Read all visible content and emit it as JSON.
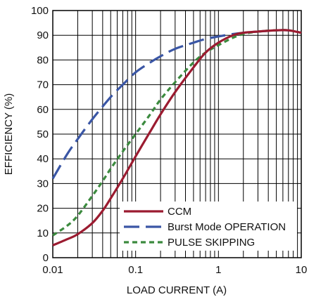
{
  "chart_data": {
    "type": "line",
    "xscale": "log",
    "xlim": [
      0.01,
      10
    ],
    "ylim": [
      0,
      100
    ],
    "xlabel": "LOAD CURRENT (A)",
    "ylabel": "EFFICIENCY (%)",
    "grid": true,
    "legend_position": "bottom-right",
    "x_ticks": [
      {
        "value": 0.01,
        "label": "0.01"
      },
      {
        "value": 0.1,
        "label": "0.1"
      },
      {
        "value": 1,
        "label": "1"
      },
      {
        "value": 10,
        "label": "10"
      }
    ],
    "y_ticks": [
      {
        "value": 0,
        "label": "0"
      },
      {
        "value": 10,
        "label": "10"
      },
      {
        "value": 20,
        "label": "20"
      },
      {
        "value": 30,
        "label": "30"
      },
      {
        "value": 40,
        "label": "40"
      },
      {
        "value": 50,
        "label": "50"
      },
      {
        "value": 60,
        "label": "60"
      },
      {
        "value": 70,
        "label": "70"
      },
      {
        "value": 80,
        "label": "80"
      },
      {
        "value": 90,
        "label": "90"
      },
      {
        "value": 100,
        "label": "100"
      }
    ],
    "series": [
      {
        "name": "CCM",
        "color": "#9b1b30",
        "dash": "solid",
        "x": [
          0.01,
          0.015,
          0.02,
          0.03,
          0.04,
          0.05,
          0.07,
          0.1,
          0.15,
          0.2,
          0.3,
          0.5,
          0.7,
          1,
          1.5,
          2,
          3,
          5,
          7,
          10
        ],
        "y": [
          5,
          7.5,
          9.5,
          14,
          19,
          24,
          32,
          41,
          51,
          58,
          67,
          77,
          83,
          87,
          90,
          91,
          91.5,
          92,
          92,
          91
        ]
      },
      {
        "name": "Burst Mode OPERATION",
        "color": "#3a56a5",
        "dash": "long-dash",
        "x": [
          0.01,
          0.015,
          0.02,
          0.03,
          0.05,
          0.07,
          0.1,
          0.15,
          0.2,
          0.3,
          0.5,
          0.7,
          1,
          1.5,
          2,
          3,
          5,
          7,
          10
        ],
        "y": [
          32,
          42,
          48,
          56,
          65,
          70,
          75,
          79,
          81.5,
          84.5,
          87,
          88.5,
          89.5,
          90.5,
          91,
          91.5,
          92,
          92,
          91
        ]
      },
      {
        "name": "PULSE SKIPPING",
        "color": "#3b8a3e",
        "dash": "short-dash",
        "x": [
          0.01,
          0.015,
          0.02,
          0.03,
          0.04,
          0.05,
          0.07,
          0.1,
          0.15,
          0.2,
          0.3,
          0.5,
          0.7,
          1,
          1.5,
          2,
          3,
          5,
          7,
          10
        ],
        "y": [
          9,
          13,
          17,
          25,
          31,
          36,
          43,
          50,
          58,
          64,
          71,
          79,
          83,
          86,
          89,
          90.5,
          91.5,
          92,
          92,
          91
        ]
      }
    ]
  }
}
